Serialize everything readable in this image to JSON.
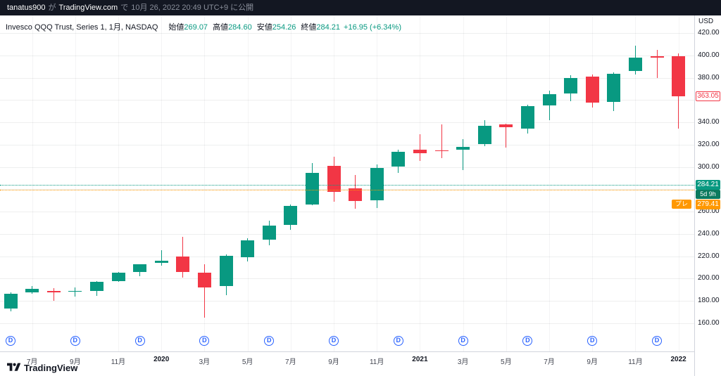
{
  "topbar": {
    "username": "tanatus900",
    "particle_1": "が",
    "site": "TradingView.com",
    "particle_2": "で",
    "published_at": "10月 26, 2022 20:49 UTC+9 に公開"
  },
  "legend": {
    "symbol": "Invesco QQQ Trust, Series 1, 1月, NASDAQ",
    "open_label": "始値",
    "open_value": "269.07",
    "high_label": "高値",
    "high_value": "284.60",
    "low_label": "安値",
    "low_value": "254.26",
    "close_label": "終値",
    "close_value": "284.21",
    "change_value": "+16.95 (+6.34%)"
  },
  "price_axis": {
    "currency": "USD"
  },
  "logo": {
    "text": "TradingView"
  },
  "chart_data": {
    "type": "candlestick",
    "title": "Invesco QQQ Trust, Series 1, 1月, NASDAQ",
    "interval": "1月 (monthly)",
    "up_color": "#089981",
    "down_color": "#f23645",
    "premarket_color": "#ff9800",
    "countdown_color": "#0b7a5e",
    "dividend_color": "#2962ff",
    "y_axis": {
      "min": 160,
      "max": 420,
      "tick_step": 20,
      "currency": "USD",
      "grid": true
    },
    "current_price": 284.21,
    "countdown": "5d 9h",
    "premarket_label": "プレ",
    "premarket_price": 279.41,
    "last_bar_close": 363.05,
    "dividend_letter": "D",
    "dividend_marker_indices": [
      0,
      3,
      6,
      9,
      12,
      15,
      18,
      21,
      24,
      27,
      30
    ],
    "x_ticks": [
      {
        "index": 1,
        "label": "7月"
      },
      {
        "index": 3,
        "label": "9月"
      },
      {
        "index": 5,
        "label": "11月"
      },
      {
        "index": 7,
        "label": "2020"
      },
      {
        "index": 9,
        "label": "3月"
      },
      {
        "index": 11,
        "label": "5月"
      },
      {
        "index": 13,
        "label": "7月"
      },
      {
        "index": 15,
        "label": "9月"
      },
      {
        "index": 17,
        "label": "11月"
      },
      {
        "index": 19,
        "label": "2021"
      },
      {
        "index": 21,
        "label": "3月"
      },
      {
        "index": 23,
        "label": "5月"
      },
      {
        "index": 25,
        "label": "7月"
      },
      {
        "index": 27,
        "label": "9月"
      },
      {
        "index": 29,
        "label": "11月"
      },
      {
        "index": 31,
        "label": "2022"
      }
    ],
    "candles": [
      {
        "t": "2019-06",
        "o": 173.4,
        "h": 187.4,
        "l": 170.5,
        "c": 186.7
      },
      {
        "t": "2019-07",
        "o": 187.8,
        "h": 193.4,
        "l": 186.3,
        "c": 191.1
      },
      {
        "t": "2019-08",
        "o": 189.2,
        "h": 191.7,
        "l": 180.1,
        "c": 187.7
      },
      {
        "t": "2019-09",
        "o": 188.1,
        "h": 192.1,
        "l": 183.7,
        "c": 188.9
      },
      {
        "t": "2019-10",
        "o": 188.6,
        "h": 197.9,
        "l": 184.2,
        "c": 197.2
      },
      {
        "t": "2019-11",
        "o": 197.9,
        "h": 205.8,
        "l": 197.1,
        "c": 205.1
      },
      {
        "t": "2019-12",
        "o": 205.7,
        "h": 213.1,
        "l": 202.3,
        "c": 212.7
      },
      {
        "t": "2020-01",
        "o": 214.2,
        "h": 225.2,
        "l": 211.7,
        "c": 216.2
      },
      {
        "t": "2020-02",
        "o": 219.5,
        "h": 237.5,
        "l": 200.7,
        "c": 205.8
      },
      {
        "t": "2020-03",
        "o": 205.0,
        "h": 212.6,
        "l": 164.9,
        "c": 192.2
      },
      {
        "t": "2020-04",
        "o": 193.2,
        "h": 221.5,
        "l": 185.0,
        "c": 220.4
      },
      {
        "t": "2020-05",
        "o": 219.3,
        "h": 235.9,
        "l": 215.1,
        "c": 234.1
      },
      {
        "t": "2020-06",
        "o": 234.7,
        "h": 251.6,
        "l": 230.0,
        "c": 247.8
      },
      {
        "t": "2020-07",
        "o": 248.0,
        "h": 266.4,
        "l": 243.4,
        "c": 265.0
      },
      {
        "t": "2020-08",
        "o": 266.5,
        "h": 303.5,
        "l": 265.5,
        "c": 294.9
      },
      {
        "t": "2020-09",
        "o": 301.0,
        "h": 309.0,
        "l": 268.7,
        "c": 277.5
      },
      {
        "t": "2020-10",
        "o": 280.6,
        "h": 292.9,
        "l": 262.4,
        "c": 269.4
      },
      {
        "t": "2020-11",
        "o": 269.9,
        "h": 302.0,
        "l": 263.0,
        "c": 299.0
      },
      {
        "t": "2020-12",
        "o": 300.2,
        "h": 315.2,
        "l": 294.7,
        "c": 313.7
      },
      {
        "t": "2021-01",
        "o": 315.3,
        "h": 329.6,
        "l": 305.6,
        "c": 312.4
      },
      {
        "t": "2021-02",
        "o": 314.7,
        "h": 338.2,
        "l": 308.0,
        "c": 314.1
      },
      {
        "t": "2021-03",
        "o": 315.4,
        "h": 324.8,
        "l": 297.5,
        "c": 318.3
      },
      {
        "t": "2021-04",
        "o": 320.5,
        "h": 342.2,
        "l": 318.4,
        "c": 336.8
      },
      {
        "t": "2021-05",
        "o": 337.9,
        "h": 338.9,
        "l": 317.1,
        "c": 335.4
      },
      {
        "t": "2021-06",
        "o": 334.6,
        "h": 356.1,
        "l": 330.3,
        "c": 354.4
      },
      {
        "t": "2021-07",
        "o": 354.9,
        "h": 368.2,
        "l": 342.1,
        "c": 365.3
      },
      {
        "t": "2021-08",
        "o": 365.7,
        "h": 382.2,
        "l": 359.1,
        "c": 379.7
      },
      {
        "t": "2021-09",
        "o": 380.7,
        "h": 382.9,
        "l": 353.1,
        "c": 357.9
      },
      {
        "t": "2021-10",
        "o": 358.1,
        "h": 385.0,
        "l": 349.8,
        "c": 383.8
      },
      {
        "t": "2021-11",
        "o": 385.8,
        "h": 408.7,
        "l": 383.1,
        "c": 397.9
      },
      {
        "t": "2021-12",
        "o": 399.1,
        "h": 404.9,
        "l": 379.5,
        "c": 397.9
      },
      {
        "t": "2022-01",
        "o": 399.0,
        "h": 401.8,
        "l": 334.2,
        "c": 363.05
      }
    ]
  }
}
